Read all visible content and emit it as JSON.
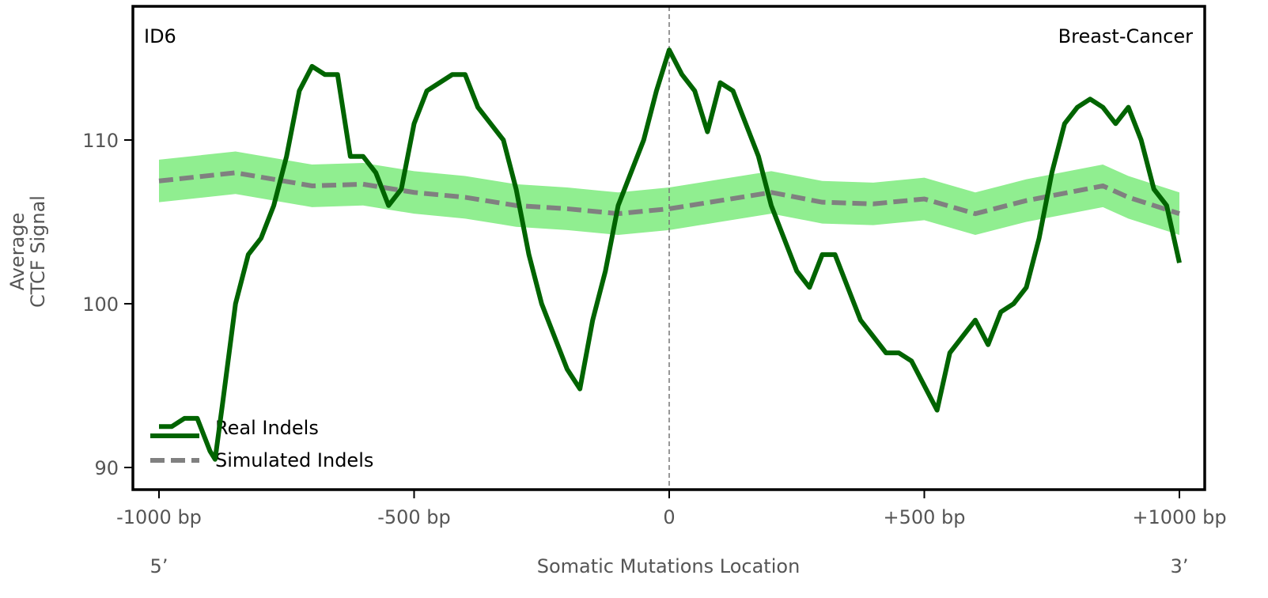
{
  "chart_data": {
    "type": "line",
    "title_left": "ID6",
    "title_right": "Breast-Cancer",
    "ylabel_line1": "Average",
    "ylabel_line2": "CTCF Signal",
    "xlabel": "Somatic Mutations Location",
    "x_end_left": "5’",
    "x_end_right": "3’",
    "xlim": [
      -1000,
      1000
    ],
    "ylim": [
      88.6,
      118.2
    ],
    "xticks": [
      {
        "value": -1000,
        "label": "-1000 bp"
      },
      {
        "value": -500,
        "label": "-500 bp"
      },
      {
        "value": 0,
        "label": "0"
      },
      {
        "value": 500,
        "label": "+500 bp"
      },
      {
        "value": 1000,
        "label": "+1000 bp"
      }
    ],
    "yticks": [
      {
        "value": 90,
        "label": "90"
      },
      {
        "value": 100,
        "label": "100"
      },
      {
        "value": 110,
        "label": "110"
      }
    ],
    "vline_x": 0,
    "legend_position": "bottom-left",
    "colors": {
      "real": "#006400",
      "simulated": "#808080",
      "band": "#90ee90"
    },
    "series": [
      {
        "name": "Real Indels",
        "x": [
          -1000,
          -975,
          -950,
          -925,
          -900,
          -890,
          -875,
          -850,
          -825,
          -800,
          -775,
          -750,
          -725,
          -700,
          -675,
          -650,
          -625,
          -600,
          -575,
          -550,
          -525,
          -500,
          -475,
          -450,
          -425,
          -400,
          -375,
          -350,
          -325,
          -300,
          -275,
          -250,
          -225,
          -200,
          -175,
          -150,
          -125,
          -100,
          -75,
          -50,
          -25,
          0,
          25,
          50,
          75,
          100,
          125,
          150,
          175,
          200,
          225,
          250,
          275,
          300,
          325,
          350,
          375,
          400,
          425,
          450,
          475,
          500,
          525,
          550,
          575,
          600,
          625,
          650,
          675,
          700,
          725,
          750,
          775,
          800,
          825,
          850,
          875,
          900,
          925,
          950,
          975,
          1000
        ],
        "values": [
          92.5,
          92.5,
          93,
          93,
          91,
          90.5,
          94,
          100,
          103,
          104,
          106,
          109,
          113,
          114.5,
          114,
          114,
          109,
          109,
          108,
          106,
          107,
          111,
          113,
          113.5,
          114,
          114,
          112,
          111,
          110,
          107,
          103,
          100,
          98,
          96,
          94.8,
          99,
          102,
          106,
          108,
          110,
          113,
          115.5,
          114,
          113,
          110.5,
          113.5,
          113,
          111,
          109,
          106,
          104,
          102,
          101,
          103,
          103,
          101,
          99,
          98,
          97,
          97,
          96.5,
          95,
          93.5,
          97,
          98,
          99,
          97.5,
          99.5,
          100,
          101,
          104,
          108,
          111,
          112,
          112.5,
          112,
          111,
          112,
          110,
          107,
          106,
          102.5
        ]
      },
      {
        "name": "Simulated Indels",
        "x": [
          -1000,
          -850,
          -700,
          -600,
          -500,
          -400,
          -300,
          -200,
          -100,
          0,
          100,
          200,
          300,
          400,
          500,
          600,
          700,
          850,
          900,
          1000
        ],
        "values": [
          107.5,
          108,
          107.2,
          107.3,
          106.8,
          106.5,
          106,
          105.8,
          105.5,
          105.8,
          106.3,
          106.8,
          106.2,
          106.1,
          106.4,
          105.5,
          106.3,
          107.2,
          106.5,
          105.5
        ],
        "band_halfwidth": 1.3
      }
    ]
  }
}
